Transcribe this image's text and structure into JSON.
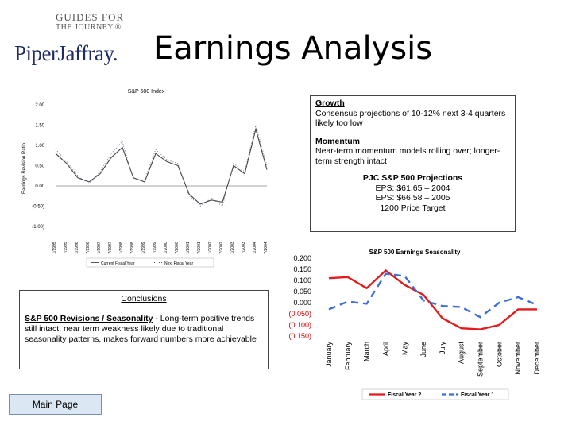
{
  "header": {
    "guides_line1": "GUIDES FOR",
    "guides_line2": "THE JOURNEY.®",
    "brand": "PiperJaffray.",
    "title": "Earnings Analysis"
  },
  "growth_box": {
    "growth_heading": "Growth",
    "growth_text": "Consensus projections of 10-12% next 3-4 quarters likely too low",
    "momentum_heading": "Momentum",
    "momentum_text": "Near-term momentum models rolling over; longer-term strength intact",
    "projections_title": "PJC S&P 500 Projections",
    "eps_2004": "EPS: $61.65 – 2004",
    "eps_2005": "EPS: $66.58 – 2005",
    "price_target": "1200 Price Target"
  },
  "conclusions": {
    "title": "Conclusions",
    "bold_lead": "S&P 500 Revisions / Seasonality",
    "text": " - Long-term positive trends still intact; near term weakness likely due to traditional seasonality patterns, makes forward numbers more achievable"
  },
  "nav": {
    "main_page_label": "Main Page"
  },
  "colors": {
    "fy2": "#e41a1c",
    "fy1": "#3a6fd8",
    "index_line": "#444444"
  },
  "chart_data": [
    {
      "type": "line",
      "title": "S&P 500 Index",
      "ylabel": "Earnings Revision Ratio",
      "yticks": [
        "2.00",
        "1.50",
        "1.00",
        "0.50",
        "0.00",
        "(0.50)",
        "(1.00)"
      ],
      "ylim": [
        -1.0,
        2.0
      ],
      "x": [
        "1/1995",
        "7/1995",
        "1/1996",
        "7/1996",
        "1/1997",
        "7/1997",
        "1/1998",
        "7/1998",
        "1/1999",
        "7/1999",
        "1/2000",
        "7/2000",
        "1/2001",
        "7/2001",
        "1/2002",
        "7/2002",
        "1/2003",
        "7/2003",
        "1/2004",
        "7/2004"
      ],
      "series": [
        {
          "name": "Current Fiscal Year",
          "style": "solid",
          "values": [
            0.8,
            0.55,
            0.2,
            0.1,
            0.3,
            0.7,
            0.95,
            0.2,
            0.1,
            0.8,
            0.6,
            0.5,
            -0.2,
            -0.45,
            -0.35,
            -0.4,
            0.5,
            0.3,
            1.4,
            0.4
          ]
        },
        {
          "name": "Next Fiscal Year",
          "style": "dotted",
          "values": [
            0.9,
            0.6,
            0.25,
            0.05,
            0.35,
            0.8,
            1.1,
            0.15,
            0.15,
            0.9,
            0.65,
            0.55,
            -0.25,
            -0.5,
            -0.3,
            -0.5,
            0.55,
            0.35,
            1.5,
            0.5
          ]
        }
      ]
    },
    {
      "type": "line",
      "title": "S&P 500 Earnings Seasonality",
      "categories": [
        "January",
        "February",
        "March",
        "April",
        "May",
        "June",
        "July",
        "August",
        "September",
        "October",
        "November",
        "December"
      ],
      "yticks": [
        "0.200",
        "0.150",
        "0.100",
        "0.050",
        "0.000",
        "(0.050)",
        "(0.100)",
        "(0.150)"
      ],
      "ylim": [
        -0.15,
        0.2
      ],
      "series": [
        {
          "name": "Fiscal Year 2",
          "values": [
            0.11,
            0.115,
            0.065,
            0.145,
            0.08,
            0.035,
            -0.07,
            -0.115,
            -0.12,
            -0.1,
            -0.03,
            -0.03
          ]
        },
        {
          "name": "Fiscal Year 1",
          "values": [
            -0.03,
            0.005,
            -0.005,
            0.13,
            0.12,
            0.01,
            -0.015,
            -0.02,
            -0.065,
            0.0,
            0.025,
            -0.01
          ]
        }
      ]
    }
  ]
}
